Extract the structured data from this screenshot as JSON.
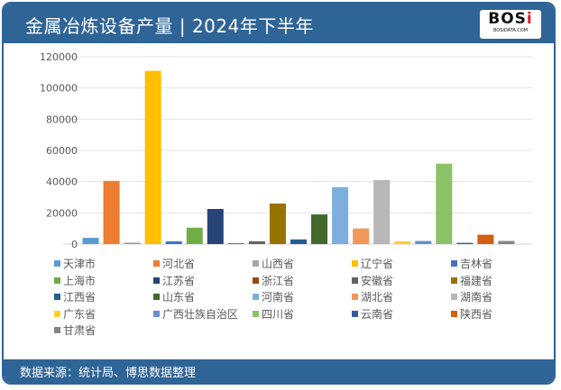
{
  "header": {
    "title": "金属冶炼设备产量 | 2024年下半年",
    "logo_text": "BOSi",
    "logo_sub": "BOSIDATA.COM"
  },
  "footer": {
    "source": "数据来源：统计局、博思数据整理"
  },
  "colors": {
    "frame": "#2f6497"
  },
  "chart_data": {
    "type": "bar",
    "title": "金属冶炼设备产量 | 2024年下半年",
    "xlabel": "",
    "ylabel": "",
    "ylim": [
      0,
      120000
    ],
    "yticks": [
      0,
      20000,
      40000,
      60000,
      80000,
      100000,
      120000
    ],
    "grid": true,
    "legend": "bottom",
    "categories": [
      "天津市",
      "河北省",
      "山西省",
      "辽宁省",
      "吉林省",
      "上海市",
      "江苏省",
      "浙江省",
      "安徽省",
      "福建省",
      "江西省",
      "山东省",
      "河南省",
      "湖北省",
      "湖南省",
      "广东省",
      "广西壮族自治区",
      "四川省",
      "云南省",
      "陕西省",
      "甘肃省"
    ],
    "values": [
      4000,
      40500,
      1000,
      111000,
      1800,
      10500,
      22500,
      500,
      1800,
      26000,
      3000,
      19000,
      36500,
      10000,
      41000,
      1800,
      2000,
      51500,
      800,
      6000,
      2000
    ],
    "bar_colors": [
      "#5b9bd5",
      "#ed7d31",
      "#a5a5a5",
      "#ffc000",
      "#4472c4",
      "#70ad47",
      "#264478",
      "#9e480e",
      "#636363",
      "#997300",
      "#255e91",
      "#43682b",
      "#7cafdd",
      "#f1975a",
      "#b7b7b7",
      "#ffcd33",
      "#698ed0",
      "#8cc168",
      "#335aa1",
      "#d26012",
      "#848484"
    ]
  }
}
